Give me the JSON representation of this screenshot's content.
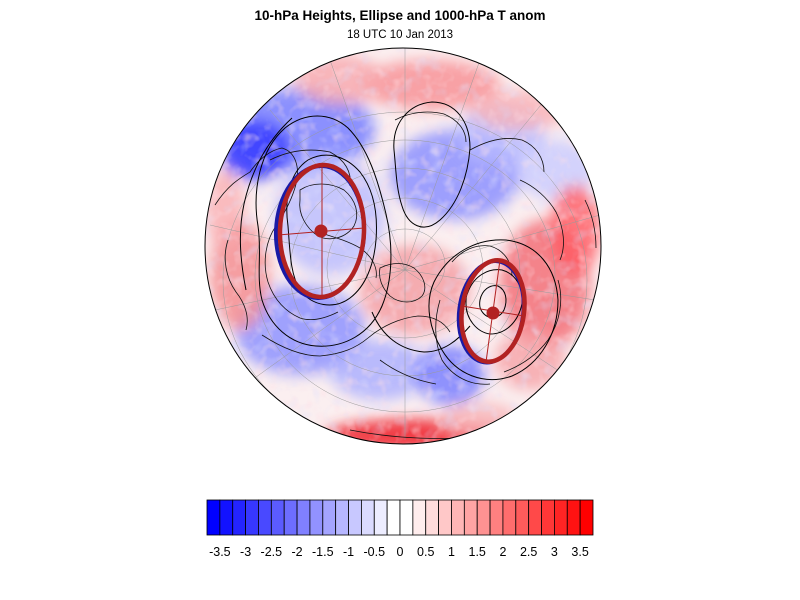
{
  "title": "10-hPa Heights, Ellipse and 1000-hPa T anom",
  "subtitle": "18 UTC 10 Jan 2013",
  "colors": {
    "cold_max": "#0000ff",
    "warm_max": "#ff0000",
    "ellipse": "#b22222",
    "ellipse_shadow": "#1a1aa6",
    "contour": "#000000",
    "coast": "#111111",
    "grid": "#999999"
  },
  "chart_data": {
    "type": "heatmap",
    "projection": "orthographic, north polar",
    "colorbar": {
      "min": -3.75,
      "max": 3.75,
      "step": 0.25,
      "tick_labels": [
        "-3.5",
        "-3",
        "-2.5",
        "-2",
        "-1.5",
        "-1",
        "-0.5",
        "0",
        "0.5",
        "1",
        "1.5",
        "2",
        "2.5",
        "3",
        "3.5"
      ]
    },
    "features": [
      {
        "name": "ellipse-1",
        "kind": "vortex ellipse, Europe / North Atlantic side"
      },
      {
        "name": "ellipse-2",
        "kind": "vortex ellipse, North Pacific / Siberia side"
      }
    ]
  }
}
